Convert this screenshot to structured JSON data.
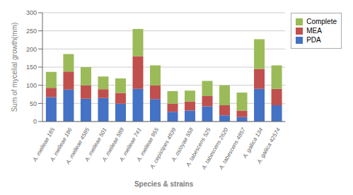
{
  "chart_data": {
    "type": "bar",
    "stacked": true,
    "xlabel": "Species & strains",
    "ylabel": "Sum of mycelial growth(mm)",
    "categories": [
      "A. melleae 185",
      "A. melleae 186",
      "A. melleae 4585",
      "A. melleae 501",
      "A. melleae 588",
      "A. melleae 741",
      "A. melleae 955",
      "A. cepistipes 4939",
      "A. ostoyae 558",
      "A. tabescens 525",
      "A. tabescens 2620",
      "A. tabescens 4857",
      "A. gallica 134",
      "A. gallica 42574"
    ],
    "series": [
      {
        "name": "PDA",
        "color": "#4472C4",
        "values": [
          67,
          88,
          63,
          65,
          49,
          90,
          62,
          27,
          30,
          42,
          17,
          12,
          90,
          45
        ]
      },
      {
        "name": "MEA",
        "color": "#C0504D",
        "values": [
          26,
          50,
          37,
          24,
          30,
          90,
          38,
          22,
          25,
          28,
          28,
          18,
          55,
          45
        ]
      },
      {
        "name": "Complete",
        "color": "#9BBB59",
        "values": [
          44,
          48,
          50,
          35,
          40,
          75,
          55,
          35,
          30,
          42,
          55,
          50,
          82,
          65
        ]
      }
    ],
    "ylim": [
      0,
      300
    ],
    "yticks": [
      0,
      50,
      100,
      150,
      200,
      250,
      300
    ],
    "grid": true,
    "legend": "upper right"
  }
}
